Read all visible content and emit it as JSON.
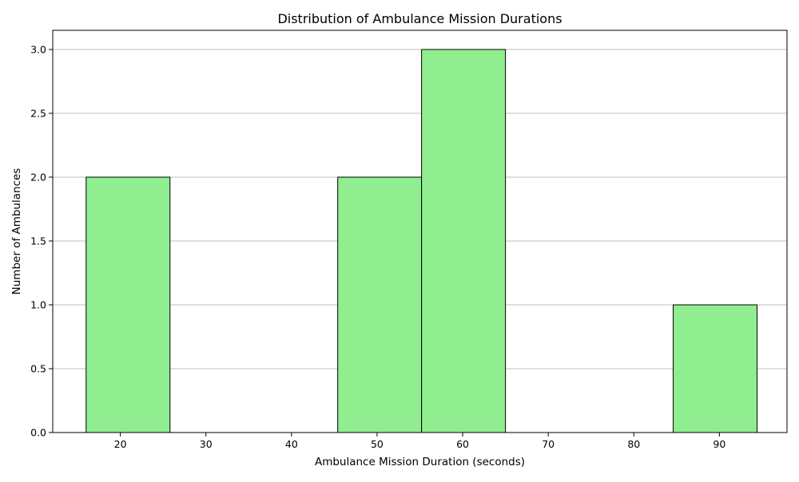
{
  "chart_data": {
    "type": "bar",
    "title": "Distribution of Ambulance Mission Durations",
    "xlabel": "Ambulance Mission Duration (seconds)",
    "ylabel": "Number of Ambulances",
    "xlim": [
      12.1,
      97.9
    ],
    "ylim": [
      0,
      3.15
    ],
    "x_ticks": [
      20,
      30,
      40,
      50,
      60,
      70,
      80,
      90
    ],
    "y_ticks": [
      "0.0",
      "0.5",
      "1.0",
      "1.5",
      "2.0",
      "2.5",
      "3.0"
    ],
    "grid": "y-major",
    "bins": [
      {
        "start": 16.0,
        "end": 25.8,
        "count": 2
      },
      {
        "start": 25.8,
        "end": 35.6,
        "count": 0
      },
      {
        "start": 35.6,
        "end": 45.4,
        "count": 0
      },
      {
        "start": 45.4,
        "end": 55.2,
        "count": 2
      },
      {
        "start": 55.2,
        "end": 65.0,
        "count": 3
      },
      {
        "start": 65.0,
        "end": 74.8,
        "count": 0
      },
      {
        "start": 74.8,
        "end": 84.6,
        "count": 0
      },
      {
        "start": 84.6,
        "end": 94.4,
        "count": 1
      }
    ],
    "bar_color": "#90ee90",
    "edge_color": "#000000",
    "grid_color": "#c0c0c0"
  }
}
